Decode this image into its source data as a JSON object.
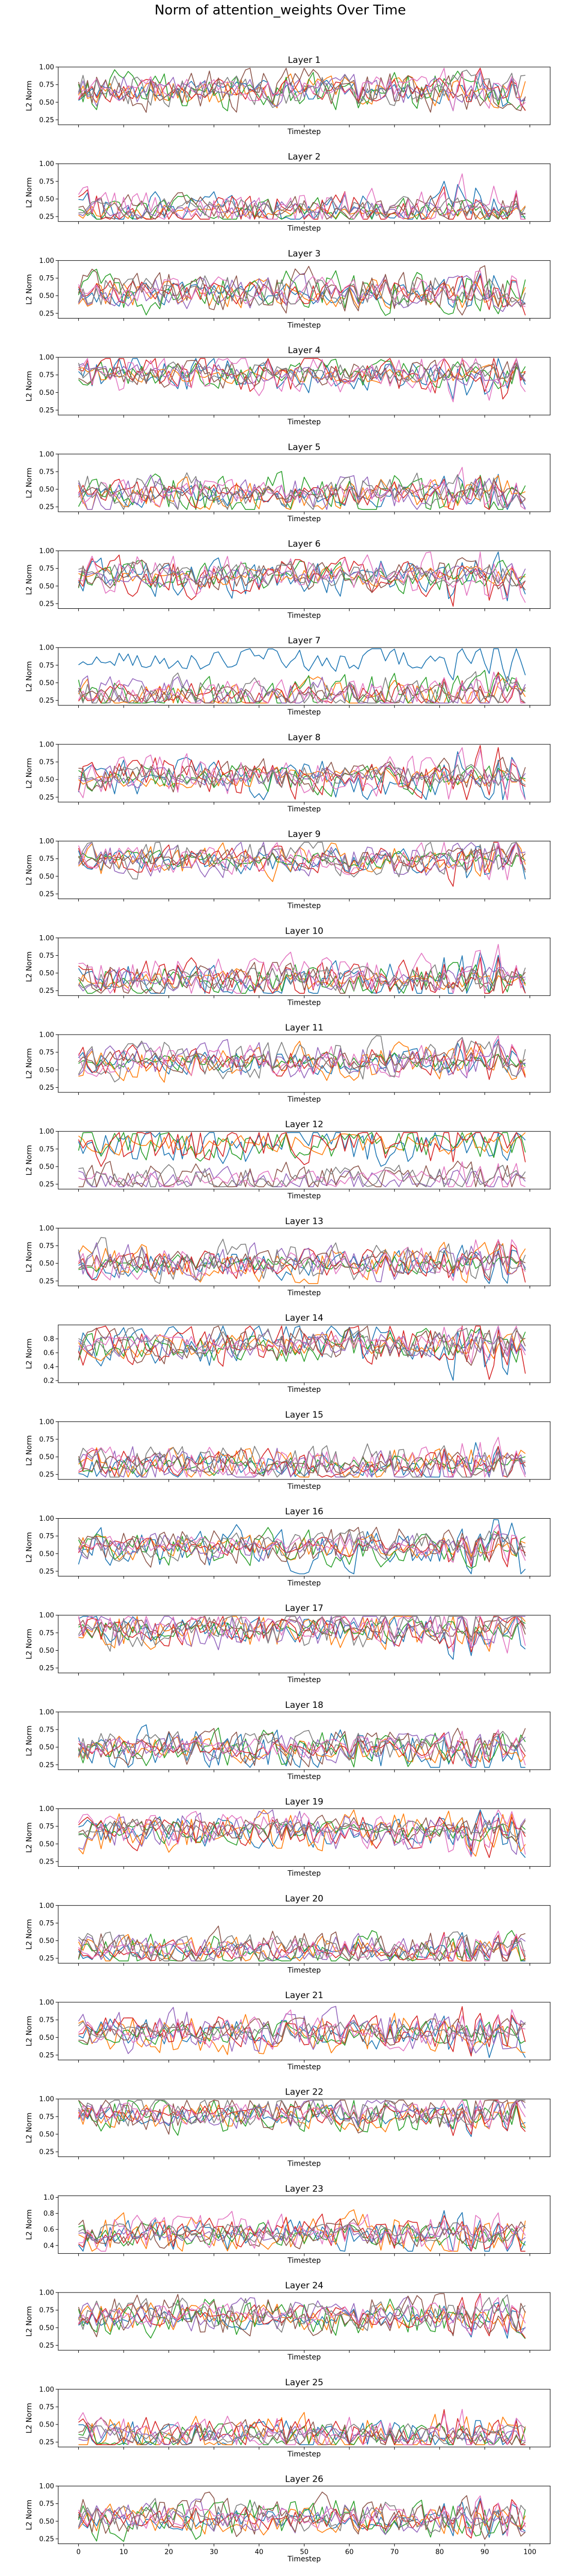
{
  "figure": {
    "title": "Norm of attention_weights Over Time"
  },
  "colors": [
    "#1f77b4",
    "#ff7f0e",
    "#2ca02c",
    "#d62728",
    "#9467bd",
    "#8c564b",
    "#e377c2",
    "#7f7f7f"
  ],
  "chart_data": {
    "type": "line",
    "x_range": [
      0,
      100
    ],
    "x_ticks": [
      0,
      10,
      20,
      30,
      40,
      50,
      60,
      70,
      80,
      90,
      100
    ],
    "xlabel": "Timestep",
    "ylabel": "L2 Norm",
    "grid": false,
    "legend": "none",
    "num_series_per_panel": 8,
    "points_per_series": 100,
    "panels": [
      {
        "title": "Layer 1",
        "ylim": [
          0.18,
          1.0
        ],
        "yticks": [
          0.25,
          0.5,
          0.75,
          1.0
        ],
        "ytick_labels": [
          "0.25",
          "0.50",
          "0.75",
          "1.00"
        ]
      },
      {
        "title": "Layer 2",
        "ylim": [
          0.18,
          1.0
        ],
        "yticks": [
          0.25,
          0.5,
          0.75,
          1.0
        ],
        "ytick_labels": [
          "0.25",
          "0.50",
          "0.75",
          "1.00"
        ]
      },
      {
        "title": "Layer 3",
        "ylim": [
          0.18,
          1.0
        ],
        "yticks": [
          0.25,
          0.5,
          0.75,
          1.0
        ],
        "ytick_labels": [
          "0.25",
          "0.50",
          "0.75",
          "1.00"
        ]
      },
      {
        "title": "Layer 4",
        "ylim": [
          0.18,
          1.0
        ],
        "yticks": [
          0.25,
          0.5,
          0.75,
          1.0
        ],
        "ytick_labels": [
          "0.25",
          "0.50",
          "0.75",
          "1.00"
        ]
      },
      {
        "title": "Layer 5",
        "ylim": [
          0.18,
          1.0
        ],
        "yticks": [
          0.25,
          0.5,
          0.75,
          1.0
        ],
        "ytick_labels": [
          "0.25",
          "0.50",
          "0.75",
          "1.00"
        ]
      },
      {
        "title": "Layer 6",
        "ylim": [
          0.18,
          1.0
        ],
        "yticks": [
          0.25,
          0.5,
          0.75,
          1.0
        ],
        "ytick_labels": [
          "0.25",
          "0.50",
          "0.75",
          "1.00"
        ]
      },
      {
        "title": "Layer 7",
        "ylim": [
          0.18,
          1.0
        ],
        "yticks": [
          0.25,
          0.5,
          0.75,
          1.0
        ],
        "ytick_labels": [
          "0.25",
          "0.50",
          "0.75",
          "1.00"
        ]
      },
      {
        "title": "Layer 8",
        "ylim": [
          0.18,
          1.0
        ],
        "yticks": [
          0.25,
          0.5,
          0.75,
          1.0
        ],
        "ytick_labels": [
          "0.25",
          "0.50",
          "0.75",
          "1.00"
        ]
      },
      {
        "title": "Layer 9",
        "ylim": [
          0.18,
          1.0
        ],
        "yticks": [
          0.25,
          0.5,
          0.75,
          1.0
        ],
        "ytick_labels": [
          "0.25",
          "0.50",
          "0.75",
          "1.00"
        ]
      },
      {
        "title": "Layer 10",
        "ylim": [
          0.18,
          1.0
        ],
        "yticks": [
          0.25,
          0.5,
          0.75,
          1.0
        ],
        "ytick_labels": [
          "0.25",
          "0.50",
          "0.75",
          "1.00"
        ]
      },
      {
        "title": "Layer 11",
        "ylim": [
          0.18,
          1.0
        ],
        "yticks": [
          0.25,
          0.5,
          0.75,
          1.0
        ],
        "ytick_labels": [
          "0.25",
          "0.50",
          "0.75",
          "1.00"
        ]
      },
      {
        "title": "Layer 12",
        "ylim": [
          0.18,
          1.0
        ],
        "yticks": [
          0.25,
          0.5,
          0.75,
          1.0
        ],
        "ytick_labels": [
          "0.25",
          "0.50",
          "0.75",
          "1.00"
        ]
      },
      {
        "title": "Layer 13",
        "ylim": [
          0.18,
          1.0
        ],
        "yticks": [
          0.25,
          0.5,
          0.75,
          1.0
        ],
        "ytick_labels": [
          "0.25",
          "0.50",
          "0.75",
          "1.00"
        ]
      },
      {
        "title": "Layer 14",
        "ylim": [
          0.17,
          1.0
        ],
        "yticks": [
          0.2,
          0.4,
          0.6,
          0.8
        ],
        "ytick_labels": [
          "0.2",
          "0.4",
          "0.6",
          "0.8"
        ]
      },
      {
        "title": "Layer 15",
        "ylim": [
          0.18,
          1.0
        ],
        "yticks": [
          0.25,
          0.5,
          0.75,
          1.0
        ],
        "ytick_labels": [
          "0.25",
          "0.50",
          "0.75",
          "1.00"
        ]
      },
      {
        "title": "Layer 16",
        "ylim": [
          0.18,
          1.0
        ],
        "yticks": [
          0.25,
          0.5,
          0.75,
          1.0
        ],
        "ytick_labels": [
          "0.25",
          "0.50",
          "0.75",
          "1.00"
        ]
      },
      {
        "title": "Layer 17",
        "ylim": [
          0.18,
          1.0
        ],
        "yticks": [
          0.25,
          0.5,
          0.75,
          1.0
        ],
        "ytick_labels": [
          "0.25",
          "0.50",
          "0.75",
          "1.00"
        ]
      },
      {
        "title": "Layer 18",
        "ylim": [
          0.18,
          1.0
        ],
        "yticks": [
          0.25,
          0.5,
          0.75,
          1.0
        ],
        "ytick_labels": [
          "0.25",
          "0.50",
          "0.75",
          "1.00"
        ]
      },
      {
        "title": "Layer 19",
        "ylim": [
          0.18,
          1.0
        ],
        "yticks": [
          0.25,
          0.5,
          0.75,
          1.0
        ],
        "ytick_labels": [
          "0.25",
          "0.50",
          "0.75",
          "1.00"
        ]
      },
      {
        "title": "Layer 20",
        "ylim": [
          0.18,
          1.0
        ],
        "yticks": [
          0.25,
          0.5,
          0.75,
          1.0
        ],
        "ytick_labels": [
          "0.25",
          "0.50",
          "0.75",
          "1.00"
        ]
      },
      {
        "title": "Layer 21",
        "ylim": [
          0.18,
          1.0
        ],
        "yticks": [
          0.25,
          0.5,
          0.75,
          1.0
        ],
        "ytick_labels": [
          "0.25",
          "0.50",
          "0.75",
          "1.00"
        ]
      },
      {
        "title": "Layer 22",
        "ylim": [
          0.18,
          1.0
        ],
        "yticks": [
          0.25,
          0.5,
          0.75,
          1.0
        ],
        "ytick_labels": [
          "0.25",
          "0.50",
          "0.75",
          "1.00"
        ]
      },
      {
        "title": "Layer 23",
        "ylim": [
          0.3,
          1.02
        ],
        "yticks": [
          0.4,
          0.6,
          0.8,
          1.0
        ],
        "ytick_labels": [
          "0.4",
          "0.6",
          "0.8",
          "1.0"
        ]
      },
      {
        "title": "Layer 24",
        "ylim": [
          0.18,
          1.0
        ],
        "yticks": [
          0.25,
          0.5,
          0.75,
          1.0
        ],
        "ytick_labels": [
          "0.25",
          "0.50",
          "0.75",
          "1.00"
        ]
      },
      {
        "title": "Layer 25",
        "ylim": [
          0.18,
          1.0
        ],
        "yticks": [
          0.25,
          0.5,
          0.75,
          1.0
        ],
        "ytick_labels": [
          "0.25",
          "0.50",
          "0.75",
          "1.00"
        ]
      },
      {
        "title": "Layer 26",
        "ylim": [
          0.18,
          1.0
        ],
        "yticks": [
          0.25,
          0.5,
          0.75,
          1.0
        ],
        "ytick_labels": [
          "0.25",
          "0.50",
          "0.75",
          "1.00"
        ]
      }
    ]
  }
}
